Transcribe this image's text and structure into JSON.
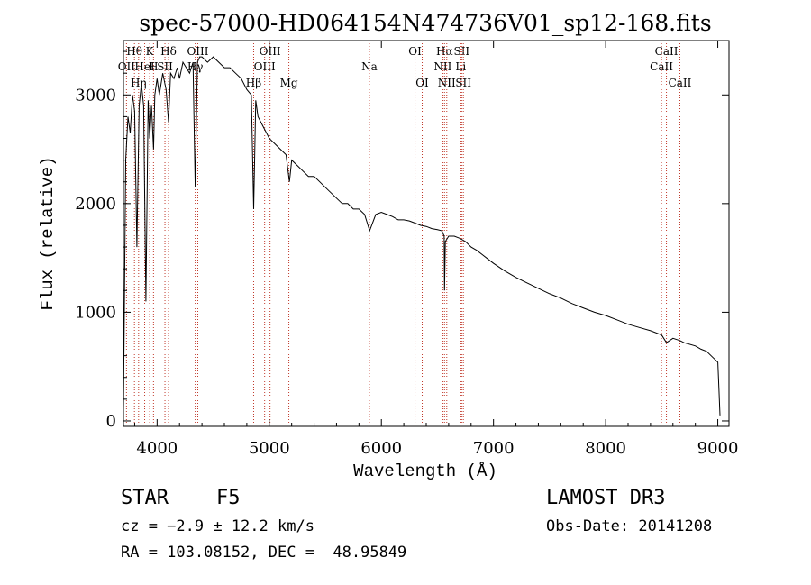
{
  "chart_data": {
    "type": "line",
    "title": "spec-57000-HD064154N474736V01_sp12-168.fits",
    "xlabel": "Wavelength (Å)",
    "ylabel": "Flux (relative)",
    "xlim": [
      3700,
      9100
    ],
    "ylim": [
      -50,
      3500
    ],
    "xticks": [
      4000,
      5000,
      6000,
      7000,
      8000,
      9000
    ],
    "yticks": [
      0,
      1000,
      2000,
      3000
    ],
    "series": [
      {
        "name": "flux",
        "x": [
          3700,
          3720,
          3740,
          3760,
          3780,
          3800,
          3820,
          3840,
          3860,
          3880,
          3900,
          3920,
          3934,
          3950,
          3968,
          3980,
          4000,
          4020,
          4050,
          4080,
          4102,
          4120,
          4150,
          4180,
          4200,
          4230,
          4260,
          4290,
          4320,
          4340,
          4360,
          4380,
          4400,
          4450,
          4500,
          4550,
          4600,
          4650,
          4700,
          4750,
          4800,
          4840,
          4861,
          4880,
          4900,
          4950,
          5000,
          5050,
          5100,
          5150,
          5180,
          5200,
          5250,
          5300,
          5350,
          5400,
          5450,
          5500,
          5550,
          5600,
          5650,
          5700,
          5750,
          5800,
          5850,
          5895,
          5950,
          6000,
          6050,
          6100,
          6150,
          6200,
          6250,
          6300,
          6350,
          6400,
          6450,
          6500,
          6540,
          6560,
          6563,
          6570,
          6600,
          6650,
          6700,
          6750,
          6800,
          6850,
          6900,
          6950,
          7000,
          7100,
          7200,
          7300,
          7400,
          7500,
          7600,
          7700,
          7800,
          7900,
          8000,
          8100,
          8200,
          8300,
          8400,
          8500,
          8542,
          8600,
          8662,
          8700,
          8800,
          8850,
          8900,
          8950,
          9000,
          9010,
          9020
        ],
        "values": [
          100,
          2400,
          2800,
          2650,
          3000,
          2850,
          1600,
          2900,
          3100,
          2900,
          1100,
          2950,
          2600,
          2900,
          2500,
          3000,
          3150,
          3000,
          3200,
          3050,
          2750,
          3200,
          3150,
          3250,
          3150,
          3300,
          3250,
          3200,
          3300,
          2150,
          3300,
          3350,
          3350,
          3300,
          3350,
          3300,
          3250,
          3250,
          3200,
          3150,
          3050,
          3000,
          1950,
          2950,
          2800,
          2700,
          2600,
          2550,
          2500,
          2450,
          2200,
          2400,
          2350,
          2300,
          2250,
          2250,
          2200,
          2150,
          2100,
          2050,
          2000,
          2000,
          1950,
          1950,
          1900,
          1750,
          1900,
          1920,
          1900,
          1880,
          1850,
          1850,
          1840,
          1820,
          1800,
          1790,
          1770,
          1760,
          1750,
          1700,
          1200,
          1650,
          1700,
          1700,
          1680,
          1650,
          1600,
          1570,
          1530,
          1490,
          1450,
          1380,
          1320,
          1270,
          1220,
          1170,
          1130,
          1080,
          1040,
          1000,
          970,
          930,
          890,
          860,
          830,
          790,
          720,
          760,
          740,
          720,
          690,
          660,
          640,
          590,
          540,
          300,
          50
        ]
      }
    ],
    "lines": [
      {
        "name": "Hθ",
        "x": 3798,
        "row": 1
      },
      {
        "name": "K",
        "x": 3934,
        "row": 1
      },
      {
        "name": "H",
        "x": 3968,
        "row": 2
      },
      {
        "name": "OII",
        "x": 3727,
        "row": 2
      },
      {
        "name": "HeI",
        "x": 3889,
        "row": 2
      },
      {
        "name": "SII",
        "x": 4070,
        "row": 2
      },
      {
        "name": "Hη",
        "x": 3835,
        "row": 3
      },
      {
        "name": "Hδ",
        "x": 4102,
        "row": 1
      },
      {
        "name": "OIII",
        "x": 4363,
        "row": 1
      },
      {
        "name": "Hγ",
        "x": 4340,
        "row": 2
      },
      {
        "name": "Hβ",
        "x": 4861,
        "row": 3
      },
      {
        "name": "OIII",
        "x": 4959,
        "row": 2
      },
      {
        "name": "OIII",
        "x": 5007,
        "row": 1
      },
      {
        "name": "Mg",
        "x": 5175,
        "row": 3
      },
      {
        "name": "Na",
        "x": 5893,
        "row": 2
      },
      {
        "name": "OI",
        "x": 6300,
        "row": 1
      },
      {
        "name": "OI",
        "x": 6364,
        "row": 3
      },
      {
        "name": "Hα",
        "x": 6563,
        "row": 1
      },
      {
        "name": "NII",
        "x": 6548,
        "row": 2
      },
      {
        "name": "NII",
        "x": 6583,
        "row": 3
      },
      {
        "name": "SII",
        "x": 6716,
        "row": 1
      },
      {
        "name": "Li",
        "x": 6708,
        "row": 2
      },
      {
        "name": "SII",
        "x": 6731,
        "row": 3
      },
      {
        "name": "CaII",
        "x": 8542,
        "row": 1
      },
      {
        "name": "CaII",
        "x": 8498,
        "row": 2
      },
      {
        "name": "CaII",
        "x": 8662,
        "row": 3
      }
    ]
  },
  "info": {
    "object_type": "STAR",
    "subclass": "F5",
    "survey": "LAMOST DR3",
    "redshift": "cz = −2.9 ± 12.2 km/s",
    "obs_date": "Obs-Date: 20141208",
    "coords": "RA = 103.08152, DEC =  48.95849"
  },
  "colors": {
    "line_marker": "#c0392b",
    "spectrum": "#000000"
  }
}
